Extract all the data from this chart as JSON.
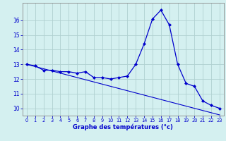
{
  "hours": [
    0,
    1,
    2,
    3,
    4,
    5,
    6,
    7,
    8,
    9,
    10,
    11,
    12,
    13,
    14,
    15,
    16,
    17,
    18,
    19,
    20,
    21,
    22,
    23
  ],
  "temp_main": [
    13.0,
    12.9,
    12.6,
    12.6,
    12.5,
    12.5,
    12.4,
    12.5,
    12.1,
    12.1,
    12.0,
    12.1,
    12.2,
    13.0,
    14.4,
    16.1,
    16.7,
    15.7,
    13.0,
    11.7,
    11.5,
    10.5,
    10.2,
    10.0
  ],
  "temp_trend": [
    13.0,
    12.85,
    12.7,
    12.55,
    12.4,
    12.25,
    12.1,
    11.95,
    11.8,
    11.65,
    11.5,
    11.35,
    11.2,
    11.05,
    10.9,
    10.75,
    10.6,
    10.45,
    10.3,
    10.15,
    10.0,
    9.85,
    9.7,
    9.55
  ],
  "line_color": "#0000cc",
  "bg_color": "#d4f0f0",
  "grid_color": "#b0d0d0",
  "xlabel": "Graphe des températures (°c)",
  "ylabel_ticks": [
    10,
    11,
    12,
    13,
    14,
    15,
    16
  ],
  "ylim": [
    9.5,
    17.2
  ],
  "xlim": [
    -0.5,
    23.5
  ],
  "fig_width": 3.2,
  "fig_height": 2.0,
  "dpi": 100
}
